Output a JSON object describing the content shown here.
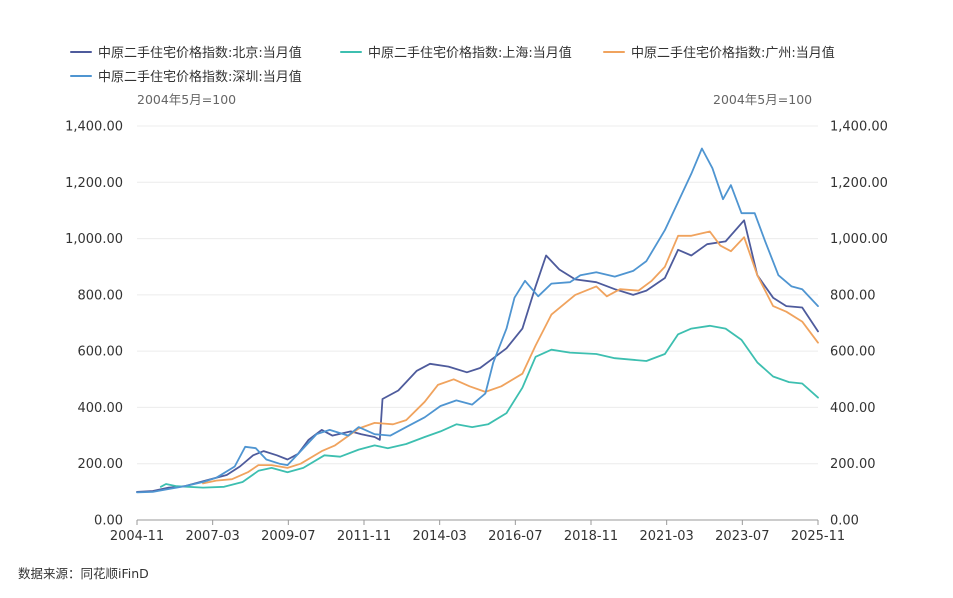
{
  "chart_data": {
    "type": "line",
    "unit_left": "2004年5月=100",
    "unit_right": "2004年5月=100",
    "x_tick_labels": [
      "2004-11",
      "2007-03",
      "2009-07",
      "2011-11",
      "2014-03",
      "2016-07",
      "2018-11",
      "2021-03",
      "2023-07",
      "2025-11"
    ],
    "x_range": [
      "2004-05",
      "2025-11"
    ],
    "ylim": [
      0,
      1400
    ],
    "y_ticks": [
      "0.00",
      "200.00",
      "400.00",
      "600.00",
      "800.00",
      "1,000.00",
      "1,200.00",
      "1,400.00"
    ],
    "grid": true,
    "legend_position": "top",
    "series": [
      {
        "name": "中原二手住宅价格指数:北京:当月值",
        "color": "#4e5b9c",
        "points": [
          [
            "2004-05",
            100
          ],
          [
            "2004-11",
            103
          ],
          [
            "2005-05",
            115
          ],
          [
            "2005-11",
            120
          ],
          [
            "2006-05",
            135
          ],
          [
            "2006-11",
            150
          ],
          [
            "2007-03",
            160
          ],
          [
            "2007-08",
            190
          ],
          [
            "2008-01",
            230
          ],
          [
            "2008-05",
            245
          ],
          [
            "2008-10",
            230
          ],
          [
            "2009-02",
            215
          ],
          [
            "2009-06",
            235
          ],
          [
            "2009-10",
            285
          ],
          [
            "2010-03",
            320
          ],
          [
            "2010-07",
            300
          ],
          [
            "2011-02",
            315
          ],
          [
            "2011-06",
            305
          ],
          [
            "2011-11",
            295
          ],
          [
            "2012-01",
            285
          ],
          [
            "2012-02",
            430
          ],
          [
            "2012-08",
            460
          ],
          [
            "2013-03",
            530
          ],
          [
            "2013-08",
            555
          ],
          [
            "2014-03",
            545
          ],
          [
            "2014-10",
            525
          ],
          [
            "2015-03",
            540
          ],
          [
            "2015-08",
            575
          ],
          [
            "2016-01",
            610
          ],
          [
            "2016-07",
            680
          ],
          [
            "2016-12",
            830
          ],
          [
            "2017-04",
            940
          ],
          [
            "2017-09",
            890
          ],
          [
            "2018-03",
            855
          ],
          [
            "2018-11",
            845
          ],
          [
            "2019-06",
            820
          ],
          [
            "2020-01",
            800
          ],
          [
            "2020-06",
            815
          ],
          [
            "2021-01",
            860
          ],
          [
            "2021-06",
            960
          ],
          [
            "2021-11",
            940
          ],
          [
            "2022-05",
            980
          ],
          [
            "2022-12",
            990
          ],
          [
            "2023-07",
            1065
          ],
          [
            "2023-12",
            870
          ],
          [
            "2024-06",
            790
          ],
          [
            "2024-11",
            760
          ],
          [
            "2025-05",
            755
          ],
          [
            "2025-11",
            670
          ]
        ]
      },
      {
        "name": "中原二手住宅价格指数:上海:当月值",
        "color": "#3dbfb0",
        "points": [
          [
            "2005-02",
            118
          ],
          [
            "2005-04",
            128
          ],
          [
            "2005-08",
            120
          ],
          [
            "2006-06",
            115
          ],
          [
            "2007-02",
            118
          ],
          [
            "2007-09",
            135
          ],
          [
            "2008-03",
            175
          ],
          [
            "2008-08",
            185
          ],
          [
            "2009-02",
            170
          ],
          [
            "2009-08",
            185
          ],
          [
            "2010-04",
            230
          ],
          [
            "2010-10",
            225
          ],
          [
            "2011-05",
            250
          ],
          [
            "2011-11",
            265
          ],
          [
            "2012-04",
            255
          ],
          [
            "2012-11",
            270
          ],
          [
            "2013-06",
            295
          ],
          [
            "2013-12",
            315
          ],
          [
            "2014-06",
            340
          ],
          [
            "2014-12",
            330
          ],
          [
            "2015-06",
            340
          ],
          [
            "2016-01",
            380
          ],
          [
            "2016-07",
            470
          ],
          [
            "2016-12",
            580
          ],
          [
            "2017-06",
            605
          ],
          [
            "2018-01",
            595
          ],
          [
            "2018-11",
            590
          ],
          [
            "2019-06",
            575
          ],
          [
            "2020-06",
            565
          ],
          [
            "2021-01",
            590
          ],
          [
            "2021-06",
            660
          ],
          [
            "2021-11",
            680
          ],
          [
            "2022-06",
            690
          ],
          [
            "2022-12",
            680
          ],
          [
            "2023-06",
            640
          ],
          [
            "2023-12",
            560
          ],
          [
            "2024-06",
            510
          ],
          [
            "2024-12",
            490
          ],
          [
            "2025-05",
            485
          ],
          [
            "2025-11",
            435
          ]
        ]
      },
      {
        "name": "中原二手住宅价格指数:广州:当月值",
        "color": "#f0a35e",
        "points": [
          [
            "2006-06",
            130
          ],
          [
            "2006-11",
            140
          ],
          [
            "2007-05",
            145
          ],
          [
            "2007-11",
            170
          ],
          [
            "2008-03",
            195
          ],
          [
            "2008-08",
            195
          ],
          [
            "2009-02",
            185
          ],
          [
            "2009-07",
            200
          ],
          [
            "2010-03",
            245
          ],
          [
            "2010-08",
            265
          ],
          [
            "2011-05",
            325
          ],
          [
            "2011-11",
            345
          ],
          [
            "2012-06",
            340
          ],
          [
            "2012-11",
            355
          ],
          [
            "2013-06",
            420
          ],
          [
            "2013-11",
            480
          ],
          [
            "2014-05",
            500
          ],
          [
            "2014-11",
            475
          ],
          [
            "2015-05",
            455
          ],
          [
            "2015-11",
            475
          ],
          [
            "2016-07",
            520
          ],
          [
            "2016-12",
            620
          ],
          [
            "2017-06",
            730
          ],
          [
            "2018-03",
            800
          ],
          [
            "2018-11",
            830
          ],
          [
            "2019-03",
            795
          ],
          [
            "2019-08",
            820
          ],
          [
            "2020-03",
            815
          ],
          [
            "2020-08",
            850
          ],
          [
            "2021-01",
            900
          ],
          [
            "2021-06",
            1010
          ],
          [
            "2021-11",
            1010
          ],
          [
            "2022-06",
            1025
          ],
          [
            "2022-10",
            975
          ],
          [
            "2023-02",
            955
          ],
          [
            "2023-07",
            1005
          ],
          [
            "2023-12",
            870
          ],
          [
            "2024-06",
            760
          ],
          [
            "2024-11",
            740
          ],
          [
            "2025-05",
            705
          ],
          [
            "2025-11",
            630
          ]
        ]
      },
      {
        "name": "中原二手住宅价格指数:深圳:当月值",
        "color": "#4f95d1",
        "points": [
          [
            "2004-05",
            98
          ],
          [
            "2004-11",
            100
          ],
          [
            "2005-05",
            110
          ],
          [
            "2005-11",
            120
          ],
          [
            "2006-06",
            135
          ],
          [
            "2006-11",
            150
          ],
          [
            "2007-06",
            190
          ],
          [
            "2007-10",
            260
          ],
          [
            "2008-02",
            255
          ],
          [
            "2008-06",
            215
          ],
          [
            "2008-11",
            200
          ],
          [
            "2009-02",
            195
          ],
          [
            "2009-07",
            245
          ],
          [
            "2010-01",
            305
          ],
          [
            "2010-06",
            320
          ],
          [
            "2011-01",
            300
          ],
          [
            "2011-05",
            330
          ],
          [
            "2011-11",
            305
          ],
          [
            "2012-05",
            300
          ],
          [
            "2012-11",
            330
          ],
          [
            "2013-06",
            365
          ],
          [
            "2013-12",
            405
          ],
          [
            "2014-06",
            425
          ],
          [
            "2014-12",
            410
          ],
          [
            "2015-05",
            450
          ],
          [
            "2015-08",
            560
          ],
          [
            "2016-01",
            680
          ],
          [
            "2016-04",
            790
          ],
          [
            "2016-08",
            850
          ],
          [
            "2017-01",
            795
          ],
          [
            "2017-06",
            840
          ],
          [
            "2018-01",
            845
          ],
          [
            "2018-05",
            870
          ],
          [
            "2018-11",
            880
          ],
          [
            "2019-06",
            865
          ],
          [
            "2020-01",
            885
          ],
          [
            "2020-06",
            920
          ],
          [
            "2021-01",
            1030
          ],
          [
            "2021-06",
            1130
          ],
          [
            "2021-11",
            1230
          ],
          [
            "2022-03",
            1320
          ],
          [
            "2022-07",
            1250
          ],
          [
            "2022-11",
            1140
          ],
          [
            "2023-02",
            1190
          ],
          [
            "2023-06",
            1090
          ],
          [
            "2023-11",
            1090
          ],
          [
            "2024-03",
            990
          ],
          [
            "2024-08",
            870
          ],
          [
            "2025-01",
            830
          ],
          [
            "2025-05",
            820
          ],
          [
            "2025-11",
            760
          ]
        ]
      }
    ]
  },
  "source_text": "数据来源：同花顺iFinD"
}
